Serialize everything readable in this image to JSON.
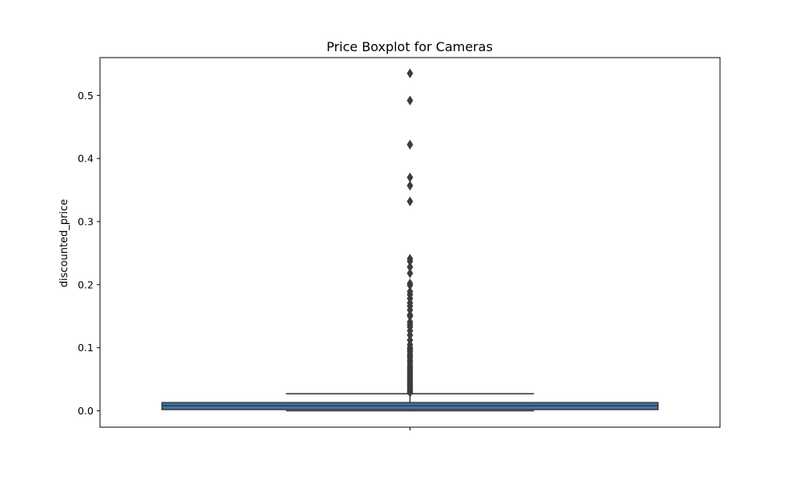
{
  "chart_data": {
    "type": "boxplot",
    "title": "Price Boxplot for Cameras",
    "xlabel": "",
    "ylabel": "discounted_price",
    "ylim": [
      -0.026,
      0.56
    ],
    "yticks": [
      0.0,
      0.1,
      0.2,
      0.3,
      0.4,
      0.5
    ],
    "ytick_labels": [
      "0.0",
      "0.1",
      "0.2",
      "0.3",
      "0.4",
      "0.5"
    ],
    "xtick_labels": [
      ""
    ],
    "grid": false,
    "box": {
      "whisker_low": 0.0,
      "q1": 0.002,
      "median": 0.008,
      "q3": 0.013,
      "whisker_high": 0.027,
      "color": "#3a75af",
      "edge_color": "#3d3d3d"
    },
    "outliers": [
      0.535,
      0.492,
      0.422,
      0.37,
      0.357,
      0.332,
      0.241,
      0.237,
      0.228,
      0.218,
      0.202,
      0.199,
      0.189,
      0.184,
      0.178,
      0.171,
      0.166,
      0.16,
      0.152,
      0.15,
      0.141,
      0.137,
      0.133,
      0.127,
      0.12,
      0.112,
      0.105,
      0.1,
      0.097,
      0.094,
      0.09,
      0.087,
      0.084,
      0.08,
      0.076,
      0.072,
      0.069,
      0.066,
      0.063,
      0.06,
      0.057,
      0.054,
      0.051,
      0.048,
      0.045,
      0.042,
      0.04,
      0.037,
      0.034,
      0.031,
      0.029
    ]
  }
}
